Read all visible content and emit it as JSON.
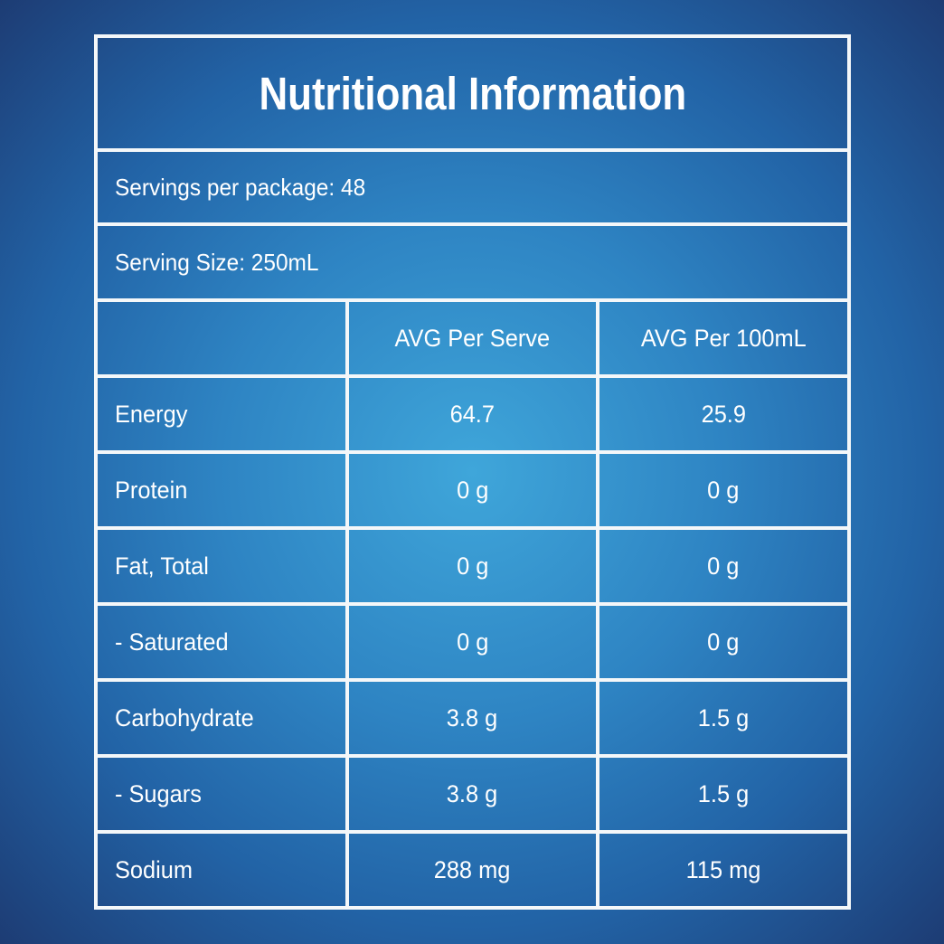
{
  "page": {
    "background_gradient": {
      "center": "#3fa6da",
      "mid": "#2e84c3",
      "outer": "#2263a6",
      "corner": "#1d3c74"
    },
    "border_color": "#f4f7f9",
    "text_color": "#ffffff"
  },
  "label": {
    "title": "Nutritional Information",
    "servings_per_package": "Servings per package: 48",
    "serving_size": "Serving Size: 250mL",
    "table": {
      "headers": [
        "",
        "AVG Per Serve",
        "AVG Per 100mL"
      ],
      "rows": [
        {
          "label": "Energy",
          "per_serve": "64.7",
          "per_100ml": "25.9"
        },
        {
          "label": "Protein",
          "per_serve": "0 g",
          "per_100ml": "0 g"
        },
        {
          "label": "Fat, Total",
          "per_serve": "0 g",
          "per_100ml": "0 g"
        },
        {
          "label": "- Saturated",
          "per_serve": "0 g",
          "per_100ml": "0 g"
        },
        {
          "label": "Carbohydrate",
          "per_serve": "3.8 g",
          "per_100ml": "1.5 g"
        },
        {
          "label": "- Sugars",
          "per_serve": "3.8 g",
          "per_100ml": "1.5 g"
        },
        {
          "label": "Sodium",
          "per_serve": "288 mg",
          "per_100ml": "115 mg"
        }
      ]
    }
  }
}
